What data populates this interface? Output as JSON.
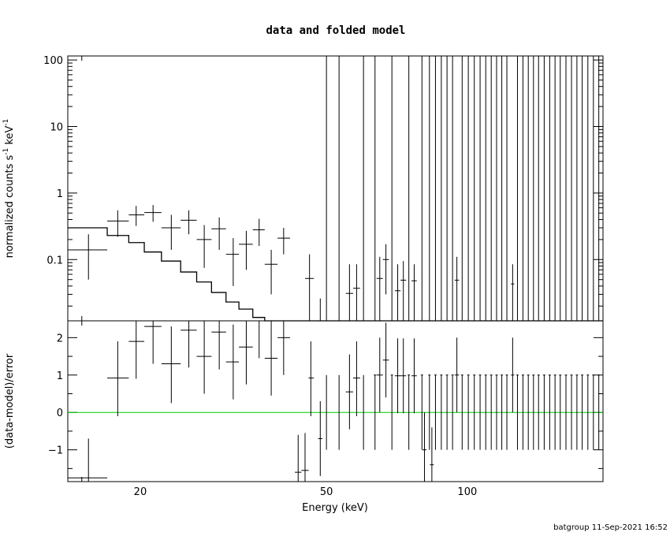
{
  "chart_data": {
    "type": "scatter",
    "title": "data and folded model",
    "xlabel": "Energy (keV)",
    "x_scale": "log",
    "xlim": [
      14,
      195
    ],
    "x_ticks": [
      20,
      50,
      100
    ],
    "footer": "batgroup 11-Sep-2021 16:52",
    "top_panel": {
      "ylabel_parts": [
        "normalized counts s",
        "-1",
        " keV",
        "-1"
      ],
      "y_scale": "log",
      "ylim": [
        0.012,
        115
      ],
      "y_ticks": [
        0.1,
        1,
        10,
        100
      ],
      "y_tick_labels": [
        "0.1",
        "1",
        "10",
        "100"
      ],
      "data": [
        {
          "x": 15.5,
          "xlo": 14.0,
          "xhi": 17.0,
          "y": 0.14,
          "ylo": 0.05,
          "yhi": 0.24
        },
        {
          "x": 17.9,
          "xlo": 17.0,
          "xhi": 18.9,
          "y": 0.38,
          "ylo": 0.22,
          "yhi": 0.55
        },
        {
          "x": 19.6,
          "xlo": 18.9,
          "xhi": 20.4,
          "y": 0.47,
          "ylo": 0.32,
          "yhi": 0.64
        },
        {
          "x": 21.3,
          "xlo": 20.4,
          "xhi": 22.2,
          "y": 0.51,
          "ylo": 0.37,
          "yhi": 0.66
        },
        {
          "x": 23.3,
          "xlo": 22.2,
          "xhi": 24.4,
          "y": 0.3,
          "ylo": 0.14,
          "yhi": 0.47
        },
        {
          "x": 25.4,
          "xlo": 24.4,
          "xhi": 26.4,
          "y": 0.39,
          "ylo": 0.24,
          "yhi": 0.55
        },
        {
          "x": 27.4,
          "xlo": 26.4,
          "xhi": 28.4,
          "y": 0.2,
          "ylo": 0.075,
          "yhi": 0.33
        },
        {
          "x": 29.5,
          "xlo": 28.4,
          "xhi": 30.5,
          "y": 0.29,
          "ylo": 0.14,
          "yhi": 0.43
        },
        {
          "x": 31.6,
          "xlo": 30.5,
          "xhi": 32.5,
          "y": 0.12,
          "ylo": 0.04,
          "yhi": 0.21
        },
        {
          "x": 33.7,
          "xlo": 32.5,
          "xhi": 34.8,
          "y": 0.17,
          "ylo": 0.07,
          "yhi": 0.27
        },
        {
          "x": 35.9,
          "xlo": 34.8,
          "xhi": 36.9,
          "y": 0.28,
          "ylo": 0.16,
          "yhi": 0.41
        },
        {
          "x": 38.1,
          "xlo": 36.9,
          "xhi": 39.3,
          "y": 0.085,
          "ylo": 0.03,
          "yhi": 0.14
        },
        {
          "x": 40.5,
          "xlo": 39.3,
          "xhi": 41.8,
          "y": 0.21,
          "ylo": 0.12,
          "yhi": 0.3
        },
        {
          "x": 46.0,
          "xlo": 45.0,
          "xhi": 47.0,
          "y": 0.052,
          "ylo": 0.012,
          "yhi": 0.12
        },
        {
          "x": 48.5,
          "xlo": 48.5,
          "xhi": 48.5,
          "y": 0.012,
          "ylo": 0.012,
          "yhi": 0.026
        },
        {
          "x": 50.0,
          "xlo": 50.0,
          "xhi": 50.0,
          "y": 0.012,
          "ylo": 0.012,
          "yhi": 115
        },
        {
          "x": 53.2,
          "xlo": 53.2,
          "xhi": 53.2,
          "y": 0.012,
          "ylo": 0.012,
          "yhi": 115
        },
        {
          "x": 56.0,
          "xlo": 55.0,
          "xhi": 57.0,
          "y": 0.031,
          "ylo": 0.012,
          "yhi": 0.085
        },
        {
          "x": 58.0,
          "xlo": 57.0,
          "xhi": 59.0,
          "y": 0.037,
          "ylo": 0.012,
          "yhi": 0.085
        },
        {
          "x": 60.0,
          "xlo": 60.0,
          "xhi": 60.0,
          "y": 0.012,
          "ylo": 0.012,
          "yhi": 115
        },
        {
          "x": 65.0,
          "xlo": 64.0,
          "xhi": 66.0,
          "y": 0.052,
          "ylo": 0.012,
          "yhi": 0.11
        },
        {
          "x": 67.0,
          "xlo": 66.0,
          "xhi": 68.0,
          "y": 0.1,
          "ylo": 0.03,
          "yhi": 0.17
        },
        {
          "x": 71.0,
          "xlo": 70.0,
          "xhi": 72.0,
          "y": 0.034,
          "ylo": 0.012,
          "yhi": 0.085
        },
        {
          "x": 73.0,
          "xlo": 72.0,
          "xhi": 74.0,
          "y": 0.049,
          "ylo": 0.012,
          "yhi": 0.095
        },
        {
          "x": 77.0,
          "xlo": 76.0,
          "xhi": 78.0,
          "y": 0.048,
          "ylo": 0.012,
          "yhi": 0.085
        },
        {
          "x": 95.0,
          "xlo": 94.0,
          "xhi": 96.0,
          "y": 0.049,
          "ylo": 0.012,
          "yhi": 0.11
        },
        {
          "x": 125.0,
          "xlo": 124.0,
          "xhi": 126.0,
          "y": 0.043,
          "ylo": 0.012,
          "yhi": 0.085
        }
      ],
      "upper_limit_x": [
        63.5,
        69.0,
        75.0,
        80.0,
        83.0,
        85.5,
        88.0,
        90.5,
        93.0,
        97.5,
        100.5,
        103.5,
        106.5,
        109.5,
        112.5,
        115.5,
        118.5,
        121.5,
        128.0,
        131.5,
        135.0,
        138.5,
        142.0,
        146.0,
        150.0,
        154.0,
        158.0,
        162.5,
        167.0,
        171.5,
        176.0,
        181.0,
        186.0,
        191.0
      ],
      "model_steps": [
        {
          "x0": 14.0,
          "x1": 17.0,
          "y": 0.3
        },
        {
          "x0": 17.0,
          "x1": 18.9,
          "y": 0.23
        },
        {
          "x0": 18.9,
          "x1": 20.4,
          "y": 0.18
        },
        {
          "x0": 20.4,
          "x1": 22.2,
          "y": 0.13
        },
        {
          "x0": 22.2,
          "x1": 24.4,
          "y": 0.095
        },
        {
          "x0": 24.4,
          "x1": 26.4,
          "y": 0.065
        },
        {
          "x0": 26.4,
          "x1": 28.4,
          "y": 0.046
        },
        {
          "x0": 28.4,
          "x1": 30.5,
          "y": 0.032
        },
        {
          "x0": 30.5,
          "x1": 32.5,
          "y": 0.023
        },
        {
          "x0": 32.5,
          "x1": 34.8,
          "y": 0.018
        },
        {
          "x0": 34.8,
          "x1": 36.9,
          "y": 0.0135
        },
        {
          "x0": 36.9,
          "x1": 195.0,
          "y": 0.012
        }
      ]
    },
    "bottom_panel": {
      "ylabel": "(data-model)/error",
      "ylim": [
        -1.85,
        2.45
      ],
      "y_ticks": [
        -1,
        0,
        1,
        2
      ],
      "y_tick_labels": [
        "−1",
        "0",
        "1",
        "2"
      ],
      "zero_line_color": "#00cc00",
      "data": [
        {
          "x": 15.5,
          "xlo": 14.0,
          "xhi": 17.0,
          "y": -1.75,
          "ylo": -2.2,
          "yhi": -0.7
        },
        {
          "x": 17.9,
          "xlo": 17.0,
          "xhi": 18.9,
          "y": 0.92,
          "ylo": -0.1,
          "yhi": 1.9
        },
        {
          "x": 19.6,
          "xlo": 18.9,
          "xhi": 20.4,
          "y": 1.9,
          "ylo": 0.9,
          "yhi": 2.9
        },
        {
          "x": 21.3,
          "xlo": 20.4,
          "xhi": 22.2,
          "y": 2.3,
          "ylo": 1.3,
          "yhi": 3.3
        },
        {
          "x": 23.3,
          "xlo": 22.2,
          "xhi": 24.4,
          "y": 1.3,
          "ylo": 0.25,
          "yhi": 2.3
        },
        {
          "x": 25.4,
          "xlo": 24.4,
          "xhi": 26.4,
          "y": 2.2,
          "ylo": 1.2,
          "yhi": 3.2
        },
        {
          "x": 27.4,
          "xlo": 26.4,
          "xhi": 28.4,
          "y": 1.5,
          "ylo": 0.5,
          "yhi": 2.5
        },
        {
          "x": 29.5,
          "xlo": 28.4,
          "xhi": 30.5,
          "y": 2.15,
          "ylo": 1.15,
          "yhi": 3.15
        },
        {
          "x": 31.6,
          "xlo": 30.5,
          "xhi": 32.5,
          "y": 1.35,
          "ylo": 0.35,
          "yhi": 2.35
        },
        {
          "x": 33.7,
          "xlo": 32.5,
          "xhi": 34.8,
          "y": 1.75,
          "ylo": 0.75,
          "yhi": 2.75
        },
        {
          "x": 35.9,
          "xlo": 34.8,
          "xhi": 36.9,
          "y": 2.45,
          "ylo": 1.45,
          "yhi": 3.45
        },
        {
          "x": 38.1,
          "xlo": 36.9,
          "xhi": 39.3,
          "y": 1.45,
          "ylo": 0.45,
          "yhi": 2.45
        },
        {
          "x": 40.5,
          "xlo": 39.3,
          "xhi": 41.8,
          "y": 2.0,
          "ylo": 1.0,
          "yhi": 3.0
        },
        {
          "x": 43.5,
          "xlo": 42.8,
          "xhi": 44.2,
          "y": -1.6,
          "ylo": -2.6,
          "yhi": -0.6
        },
        {
          "x": 45.0,
          "xlo": 44.2,
          "xhi": 45.8,
          "y": -1.55,
          "ylo": -2.55,
          "yhi": -0.55
        },
        {
          "x": 46.3,
          "xlo": 45.8,
          "xhi": 47.0,
          "y": 0.92,
          "ylo": -0.1,
          "yhi": 1.9
        },
        {
          "x": 48.5,
          "xlo": 48.0,
          "xhi": 49.0,
          "y": -0.7,
          "ylo": -1.7,
          "yhi": 0.3
        },
        {
          "x": 50.0,
          "xlo": 50.0,
          "xhi": 50.0,
          "y": 0.0,
          "ylo": -1.0,
          "yhi": 1.0
        },
        {
          "x": 53.2,
          "xlo": 53.2,
          "xhi": 53.2,
          "y": 0.0,
          "ylo": -1.0,
          "yhi": 1.0
        },
        {
          "x": 56.0,
          "xlo": 55.0,
          "xhi": 57.0,
          "y": 0.55,
          "ylo": -0.45,
          "yhi": 1.55
        },
        {
          "x": 58.0,
          "xlo": 57.0,
          "xhi": 59.0,
          "y": 0.92,
          "ylo": -0.1,
          "yhi": 1.9
        },
        {
          "x": 60.0,
          "xlo": 60.0,
          "xhi": 60.0,
          "y": 0.0,
          "ylo": -1.0,
          "yhi": 1.0
        },
        {
          "x": 65.0,
          "xlo": 64.0,
          "xhi": 66.0,
          "y": 1.0,
          "ylo": 0.0,
          "yhi": 2.0
        },
        {
          "x": 67.0,
          "xlo": 66.0,
          "xhi": 68.0,
          "y": 1.4,
          "ylo": 0.4,
          "yhi": 2.4
        },
        {
          "x": 71.0,
          "xlo": 70.0,
          "xhi": 72.0,
          "y": 0.98,
          "ylo": -0.02,
          "yhi": 1.98
        },
        {
          "x": 73.0,
          "xlo": 72.0,
          "xhi": 74.0,
          "y": 0.98,
          "ylo": -0.02,
          "yhi": 1.98
        },
        {
          "x": 77.0,
          "xlo": 76.0,
          "xhi": 78.0,
          "y": 0.98,
          "ylo": -0.02,
          "yhi": 1.98
        },
        {
          "x": 81.0,
          "xlo": 80.2,
          "xhi": 81.8,
          "y": -1.0,
          "ylo": -2.0,
          "yhi": 0.0
        },
        {
          "x": 84.0,
          "xlo": 83.2,
          "xhi": 84.8,
          "y": -1.4,
          "ylo": -2.4,
          "yhi": -0.4
        },
        {
          "x": 95.0,
          "xlo": 94.0,
          "xhi": 96.0,
          "y": 1.0,
          "ylo": 0.0,
          "yhi": 2.0
        },
        {
          "x": 125.0,
          "xlo": 124.0,
          "xhi": 126.0,
          "y": 1.0,
          "ylo": 0.0,
          "yhi": 2.0
        }
      ]
    }
  }
}
